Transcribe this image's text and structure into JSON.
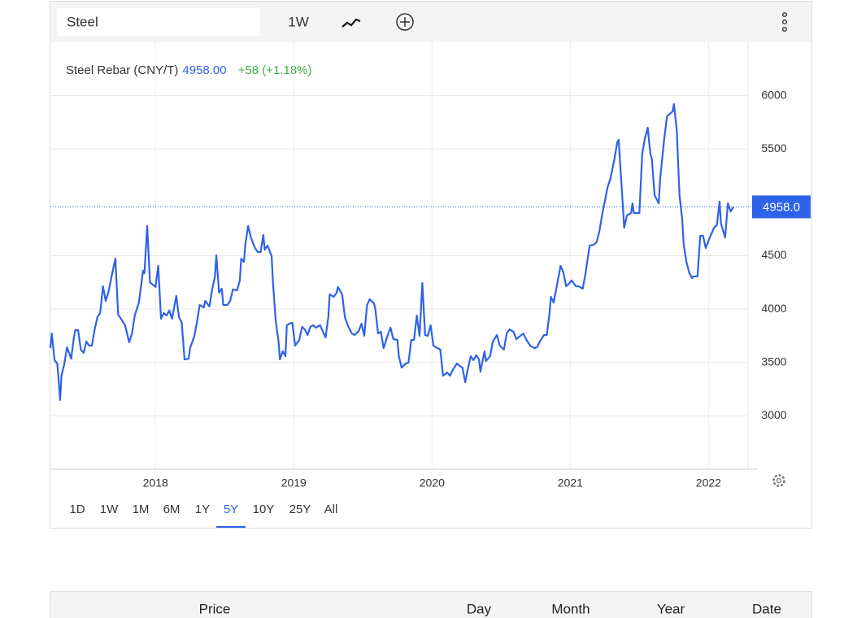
{
  "toolbar": {
    "search": "Steel",
    "interval": "1W"
  },
  "header": {
    "price": "4958.00",
    "change": "+58 (+1.18%)"
  },
  "chart_data": {
    "type": "line",
    "title": "Steel Rebar (CNY/T)",
    "color": "#2e62e8",
    "x": [
      2017.24,
      2017.25,
      2017.27,
      2017.29,
      2017.31,
      2017.32,
      2017.34,
      2017.36,
      2017.39,
      2017.41,
      2017.42,
      2017.44,
      2017.46,
      2017.48,
      2017.5,
      2017.52,
      2017.54,
      2017.56,
      2017.58,
      2017.6,
      2017.62,
      2017.64,
      2017.66,
      2017.68,
      2017.71,
      2017.73,
      2017.75,
      2017.78,
      2017.81,
      2017.83,
      2017.85,
      2017.88,
      2017.91,
      2017.92,
      2017.94,
      2017.96,
      2018.0,
      2018.02,
      2018.04,
      2018.06,
      2018.08,
      2018.1,
      2018.12,
      2018.15,
      2018.17,
      2018.19,
      2018.21,
      2018.24,
      2018.25,
      2018.28,
      2018.3,
      2018.32,
      2018.35,
      2018.36,
      2018.39,
      2018.41,
      2018.43,
      2018.44,
      2018.46,
      2018.48,
      2018.49,
      2018.52,
      2018.54,
      2018.56,
      2018.59,
      2018.61,
      2018.62,
      2018.64,
      2018.65,
      2018.67,
      2018.69,
      2018.72,
      2018.74,
      2018.76,
      2018.78,
      2018.79,
      2018.81,
      2018.84,
      2018.85,
      2018.87,
      2018.89,
      2018.9,
      2018.92,
      2018.94,
      2018.95,
      2018.98,
      2018.99,
      2019.01,
      2019.04,
      2019.06,
      2019.08,
      2019.1,
      2019.12,
      2019.14,
      2019.16,
      2019.19,
      2019.23,
      2019.25,
      2019.26,
      2019.29,
      2019.31,
      2019.32,
      2019.35,
      2019.37,
      2019.39,
      2019.42,
      2019.44,
      2019.47,
      2019.49,
      2019.51,
      2019.53,
      2019.55,
      2019.58,
      2019.59,
      2019.61,
      2019.63,
      2019.65,
      2019.68,
      2019.7,
      2019.72,
      2019.75,
      2019.76,
      2019.78,
      2019.81,
      2019.83,
      2019.85,
      2019.87,
      2019.89,
      2019.91,
      2019.93,
      2019.95,
      2019.97,
      2019.99,
      2020.01,
      2020.04,
      2020.06,
      2020.08,
      2020.11,
      2020.13,
      2020.15,
      2020.18,
      2020.2,
      2020.22,
      2020.24,
      2020.26,
      2020.28,
      2020.3,
      2020.32,
      2020.34,
      2020.35,
      2020.38,
      2020.39,
      2020.42,
      2020.44,
      2020.47,
      2020.49,
      2020.52,
      2020.54,
      2020.56,
      2020.59,
      2020.61,
      2020.64,
      2020.66,
      2020.68,
      2020.71,
      2020.74,
      2020.76,
      2020.78,
      2020.81,
      2020.83,
      2020.85,
      2020.86,
      2020.88,
      2020.91,
      2020.93,
      2020.95,
      2020.97,
      2020.99,
      2021.01,
      2021.04,
      2021.06,
      2021.09,
      2021.11,
      2021.12,
      2021.14,
      2021.17,
      2021.19,
      2021.21,
      2021.22,
      2021.24,
      2021.25,
      2021.27,
      2021.29,
      2021.32,
      2021.34,
      2021.35,
      2021.37,
      2021.39,
      2021.41,
      2021.44,
      2021.45,
      2021.46,
      2021.5,
      2021.52,
      2021.54,
      2021.56,
      2021.58,
      2021.59,
      2021.61,
      2021.64,
      2021.65,
      2021.68,
      2021.7,
      2021.72,
      2021.74,
      2021.75,
      2021.77,
      2021.79,
      2021.81,
      2021.82,
      2021.84,
      2021.86,
      2021.88,
      2021.89,
      2021.92,
      2021.94,
      2021.96,
      2021.98,
      2022.0,
      2022.02,
      2022.04,
      2022.06,
      2022.08,
      2022.09,
      2022.12,
      2022.14,
      2022.16,
      2022.18
    ],
    "values": [
      3635,
      3772,
      3521,
      3490,
      3148,
      3376,
      3483,
      3643,
      3536,
      3734,
      3803,
      3803,
      3620,
      3590,
      3696,
      3658,
      3658,
      3810,
      3925,
      3963,
      4214,
      4077,
      4161,
      4290,
      4473,
      3948,
      3910,
      3849,
      3689,
      3772,
      3940,
      4062,
      4359,
      4336,
      4778,
      4252,
      4207,
      4405,
      3910,
      3963,
      3940,
      3986,
      3910,
      4123,
      3925,
      3871,
      3528,
      3536,
      3635,
      3742,
      3879,
      4039,
      4016,
      4077,
      4024,
      4184,
      4306,
      4504,
      4153,
      4191,
      4039,
      4039,
      4077,
      4184,
      4176,
      4268,
      4473,
      4443,
      4610,
      4778,
      4671,
      4572,
      4534,
      4534,
      4694,
      4557,
      4595,
      4496,
      4245,
      3887,
      3696,
      3528,
      3605,
      3559,
      3849,
      3871,
      3871,
      3658,
      3711,
      3833,
      3810,
      3757,
      3833,
      3849,
      3826,
      3849,
      3734,
      3925,
      4138,
      4115,
      4153,
      4207,
      4138,
      3925,
      3849,
      3772,
      3757,
      3795,
      3864,
      3750,
      4039,
      4092,
      4054,
      4001,
      3772,
      3787,
      3635,
      3757,
      3826,
      3719,
      3711,
      3559,
      3452,
      3490,
      3498,
      3711,
      3711,
      3940,
      3750,
      4245,
      3757,
      3750,
      3849,
      3658,
      3635,
      3620,
      3376,
      3406,
      3376,
      3429,
      3490,
      3467,
      3452,
      3315,
      3444,
      3559,
      3521,
      3567,
      3528,
      3414,
      3605,
      3513,
      3559,
      3696,
      3757,
      3658,
      3620,
      3772,
      3810,
      3787,
      3719,
      3750,
      3772,
      3719,
      3658,
      3635,
      3643,
      3696,
      3757,
      3757,
      3963,
      4115,
      4062,
      4268,
      4405,
      4344,
      4214,
      4237,
      4268,
      4214,
      4214,
      4191,
      4329,
      4420,
      4595,
      4603,
      4626,
      4725,
      4801,
      4953,
      5007,
      5144,
      5220,
      5410,
      5563,
      5586,
      5182,
      4763,
      4877,
      4900,
      4991,
      4900,
      4900,
      5449,
      5601,
      5700,
      5449,
      5410,
      5068,
      4991,
      5220,
      5601,
      5807,
      5830,
      5852,
      5921,
      5677,
      5068,
      4839,
      4610,
      4443,
      4344,
      4290,
      4306,
      4306,
      4687,
      4687,
      4572,
      4641,
      4702,
      4763,
      4786,
      5007,
      4801,
      4671,
      4991,
      4915,
      4958
    ],
    "xlim": [
      2017.24,
      2022.28
    ],
    "xticks": [
      2018,
      2019,
      2020,
      2021,
      2022
    ],
    "ylim": [
      2500,
      6500
    ],
    "yticks": [
      3000,
      3500,
      4000,
      4500,
      5500,
      6000
    ],
    "grid": true,
    "last": {
      "value": 4958,
      "label": "4958.0"
    }
  },
  "ranges": [
    "1D",
    "1W",
    "1M",
    "6M",
    "1Y",
    "5Y",
    "10Y",
    "25Y",
    "All"
  ],
  "active_range": 5,
  "table": {
    "columns": [
      "Price",
      "Day",
      "Month",
      "Year",
      "Date"
    ]
  }
}
